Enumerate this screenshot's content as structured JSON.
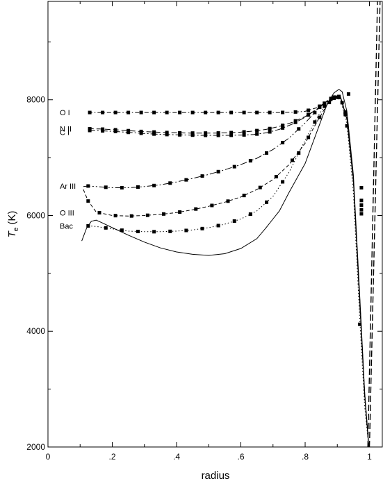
{
  "chart_data": {
    "type": "line",
    "title": "",
    "xlabel": "radius",
    "ylabel_main": "T",
    "ylabel_sub": "e",
    "ylabel_unit": "(K)",
    "xlim": [
      0,
      1.04
    ],
    "ylim": [
      2000,
      9700
    ],
    "xticks": [
      {
        "value": 0,
        "label": "0"
      },
      {
        "value": 0.2,
        "label": ".2"
      },
      {
        "value": 0.4,
        "label": ".4"
      },
      {
        "value": 0.6,
        "label": ".6"
      },
      {
        "value": 0.8,
        "label": ".8"
      },
      {
        "value": 1.0,
        "label": "1"
      }
    ],
    "yticks": [
      {
        "value": 2000,
        "label": "2000"
      },
      {
        "value": 4000,
        "label": "4000"
      },
      {
        "value": 6000,
        "label": "6000"
      },
      {
        "value": 8000,
        "label": "8000"
      }
    ],
    "grid": false,
    "legend": "none",
    "series": [
      {
        "name": "O I",
        "label_at": 7780,
        "dash": "6,3,1.5,3",
        "x": [
          0.125,
          0.16,
          0.2,
          0.24,
          0.28,
          0.32,
          0.36,
          0.4,
          0.44,
          0.48,
          0.52,
          0.56,
          0.6,
          0.64,
          0.68,
          0.72,
          0.76,
          0.8,
          0.84,
          0.87,
          0.895,
          0.91,
          0.93,
          0.95,
          0.97,
          0.985,
          0.998
        ],
        "y": [
          7780,
          7780,
          7780,
          7780,
          7780,
          7780,
          7780,
          7780,
          7780,
          7780,
          7780,
          7780,
          7780,
          7780,
          7780,
          7780,
          7785,
          7800,
          7870,
          7980,
          8060,
          8030,
          7650,
          6600,
          4500,
          2900,
          2000
        ],
        "markers": [
          0.13,
          0.17,
          0.21,
          0.25,
          0.29,
          0.33,
          0.37,
          0.41,
          0.45,
          0.49,
          0.53,
          0.57,
          0.61,
          0.65,
          0.69,
          0.73,
          0.77,
          0.81,
          0.845,
          0.88,
          0.905,
          0.925
        ]
      },
      {
        "name": "N II",
        "label_at": 7500,
        "dash": "8,4",
        "x": [
          0.125,
          0.16,
          0.2,
          0.24,
          0.28,
          0.32,
          0.36,
          0.4,
          0.44,
          0.48,
          0.52,
          0.56,
          0.6,
          0.64,
          0.68,
          0.72,
          0.76,
          0.8,
          0.84,
          0.87,
          0.895,
          0.91,
          0.93,
          0.95,
          0.97,
          0.985,
          0.998
        ],
        "y": [
          7500,
          7495,
          7485,
          7470,
          7455,
          7445,
          7435,
          7430,
          7425,
          7425,
          7425,
          7430,
          7440,
          7460,
          7490,
          7540,
          7610,
          7710,
          7850,
          7980,
          8060,
          8040,
          7680,
          6620,
          4520,
          2920,
          2000
        ],
        "markers": [
          0.13,
          0.17,
          0.21,
          0.25,
          0.29,
          0.33,
          0.37,
          0.41,
          0.45,
          0.49,
          0.53,
          0.57,
          0.61,
          0.65,
          0.69,
          0.73,
          0.77,
          0.81,
          0.845,
          0.88,
          0.905,
          0.925
        ]
      },
      {
        "name": "C I",
        "label_at": 7440,
        "dash": "10,3,2,3",
        "x": [
          0.125,
          0.16,
          0.2,
          0.24,
          0.28,
          0.32,
          0.36,
          0.4,
          0.44,
          0.48,
          0.52,
          0.56,
          0.6,
          0.64,
          0.68,
          0.72,
          0.76,
          0.8,
          0.84,
          0.87,
          0.895,
          0.91,
          0.93,
          0.95,
          0.97,
          0.985,
          0.998
        ],
        "y": [
          7470,
          7465,
          7455,
          7440,
          7425,
          7410,
          7400,
          7395,
          7390,
          7385,
          7385,
          7385,
          7390,
          7400,
          7430,
          7490,
          7580,
          7700,
          7850,
          7990,
          8070,
          8050,
          7700,
          6640,
          4550,
          2940,
          2000
        ],
        "markers": [
          0.13,
          0.17,
          0.21,
          0.25,
          0.29,
          0.33,
          0.37,
          0.41,
          0.45,
          0.49,
          0.53,
          0.57,
          0.61,
          0.65,
          0.69,
          0.73,
          0.77,
          0.81,
          0.845,
          0.88,
          0.905,
          0.925
        ]
      },
      {
        "name": "Ar III",
        "label_at": 6510,
        "dash": "10,3,2,3,2,3",
        "x": [
          0.11,
          0.125,
          0.15,
          0.2,
          0.25,
          0.3,
          0.35,
          0.4,
          0.45,
          0.5,
          0.55,
          0.6,
          0.65,
          0.7,
          0.75,
          0.8,
          0.84,
          0.87,
          0.895,
          0.91,
          0.93,
          0.95,
          0.97,
          0.985,
          0.998
        ],
        "y": [
          6500,
          6510,
          6500,
          6480,
          6480,
          6500,
          6530,
          6580,
          6640,
          6710,
          6790,
          6880,
          6990,
          7140,
          7340,
          7600,
          7840,
          7990,
          8060,
          8040,
          7680,
          6600,
          4480,
          2900,
          2000
        ],
        "markers": [
          0.125,
          0.18,
          0.23,
          0.28,
          0.33,
          0.38,
          0.43,
          0.48,
          0.53,
          0.58,
          0.63,
          0.68,
          0.73,
          0.78,
          0.83,
          0.86,
          0.89,
          0.915
        ]
      },
      {
        "name": "O III",
        "label_at": 6050,
        "dash": "5,3",
        "x": [
          0.11,
          0.125,
          0.15,
          0.2,
          0.25,
          0.3,
          0.35,
          0.4,
          0.45,
          0.5,
          0.55,
          0.6,
          0.65,
          0.7,
          0.75,
          0.8,
          0.84,
          0.87,
          0.895,
          0.91,
          0.93,
          0.95,
          0.97,
          0.985,
          0.998
        ],
        "y": [
          6450,
          6250,
          6060,
          6000,
          5990,
          6000,
          6020,
          6050,
          6100,
          6160,
          6230,
          6320,
          6450,
          6620,
          6880,
          7250,
          7650,
          7930,
          8050,
          8030,
          7660,
          6580,
          4460,
          2880,
          2000
        ],
        "markers": [
          0.125,
          0.16,
          0.21,
          0.26,
          0.31,
          0.36,
          0.41,
          0.46,
          0.51,
          0.56,
          0.61,
          0.66,
          0.71,
          0.76,
          0.81,
          0.845,
          0.875,
          0.9
        ]
      },
      {
        "name": "Bac",
        "label_at": 5820,
        "dash": "1.5,3",
        "x": [
          0.125,
          0.15,
          0.2,
          0.25,
          0.3,
          0.35,
          0.4,
          0.45,
          0.5,
          0.55,
          0.6,
          0.65,
          0.7,
          0.75,
          0.8,
          0.84,
          0.87,
          0.895,
          0.91,
          0.93,
          0.95,
          0.97,
          0.985,
          0.998
        ],
        "y": [
          5820,
          5810,
          5770,
          5730,
          5720,
          5720,
          5730,
          5750,
          5790,
          5850,
          5940,
          6080,
          6330,
          6750,
          7300,
          7720,
          7970,
          8040,
          8000,
          7580,
          6400,
          4200,
          2700,
          2000
        ],
        "markers": [
          0.125,
          0.18,
          0.23,
          0.28,
          0.33,
          0.38,
          0.43,
          0.48,
          0.53,
          0.58,
          0.63,
          0.68,
          0.73,
          0.78,
          0.83,
          0.86,
          0.89
        ]
      },
      {
        "name": "",
        "label_at": null,
        "dash": "",
        "x": [
          0.105,
          0.12,
          0.135,
          0.15,
          0.17,
          0.2,
          0.25,
          0.3,
          0.35,
          0.4,
          0.45,
          0.5,
          0.55,
          0.6,
          0.65,
          0.68,
          0.7,
          0.72,
          0.75,
          0.8,
          0.84,
          0.87,
          0.89,
          0.905,
          0.915,
          0.93,
          0.95,
          0.97,
          0.985,
          0.998
        ],
        "y": [
          5560,
          5780,
          5900,
          5920,
          5870,
          5790,
          5660,
          5540,
          5440,
          5370,
          5330,
          5310,
          5340,
          5430,
          5600,
          5800,
          5940,
          6080,
          6400,
          6900,
          7500,
          7950,
          8120,
          8180,
          8140,
          7800,
          6700,
          4600,
          2950,
          2000
        ],
        "markers": []
      }
    ],
    "extra_markers": [
      {
        "x": 0.975,
        "y": 6480
      },
      {
        "x": 0.975,
        "y": 6260
      },
      {
        "x": 0.975,
        "y": 6180
      },
      {
        "x": 0.975,
        "y": 6100
      },
      {
        "x": 0.975,
        "y": 6030
      },
      {
        "x": 0.97,
        "y": 4120
      },
      {
        "x": 0.935,
        "y": 8100
      },
      {
        "x": 0.93,
        "y": 7550
      }
    ],
    "vertical_dashed_lines": [
      {
        "x_bottom": 0.995,
        "x_top": 1.025
      },
      {
        "x_bottom": 1.0,
        "x_top": 1.033
      }
    ]
  }
}
